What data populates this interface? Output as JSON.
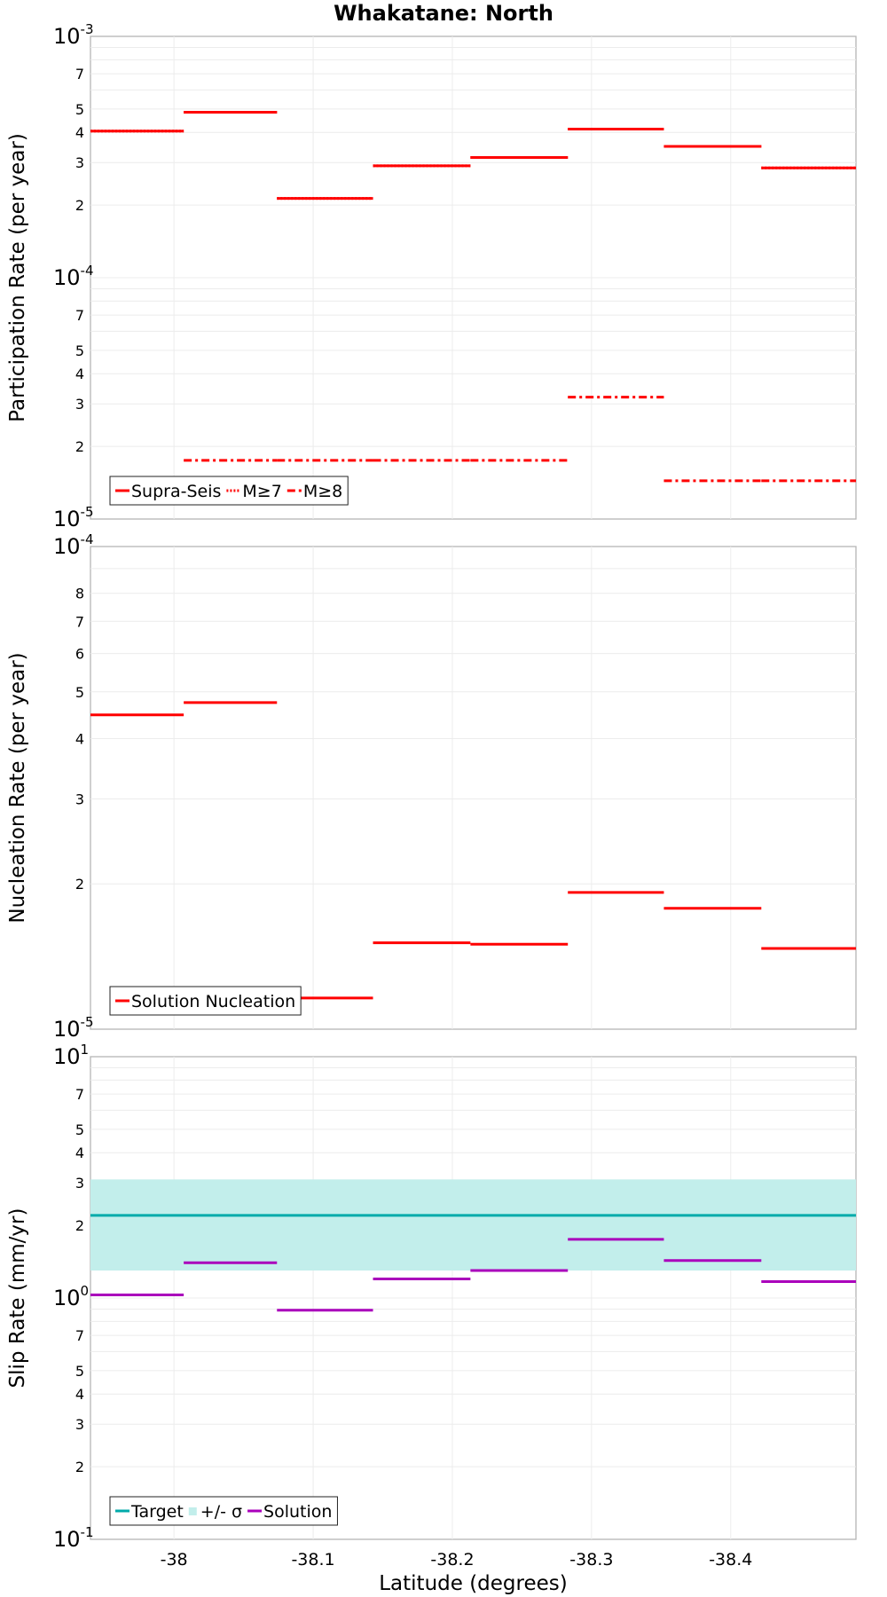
{
  "chart_data": [
    {
      "type": "step",
      "title": "Whakatane: North",
      "ylabel": "Participation Rate (per year)",
      "yscale": "log",
      "ylim": [
        1e-05,
        0.001
      ],
      "xlim": [
        -37.94,
        -38.49
      ],
      "major_tick_labels": [
        {
          "base": "10",
          "exp": "-3",
          "value": 0.001
        },
        {
          "base": "10",
          "exp": "-4",
          "value": 0.0001
        },
        {
          "base": "10",
          "exp": "-5",
          "value": 1e-05
        }
      ],
      "minor_tick_labels": [
        {
          "label": "7",
          "value": 0.0007
        },
        {
          "label": "5",
          "value": 0.0005
        },
        {
          "label": "4",
          "value": 0.0004
        },
        {
          "label": "3",
          "value": 0.0003
        },
        {
          "label": "2",
          "value": 0.0002
        },
        {
          "label": "7",
          "value": 7e-05
        },
        {
          "label": "5",
          "value": 5e-05
        },
        {
          "label": "4",
          "value": 4e-05
        },
        {
          "label": "3",
          "value": 3e-05
        },
        {
          "label": "2",
          "value": 2e-05
        }
      ],
      "legend": {
        "position": "bottom-left",
        "entries": [
          "Supra-Seis",
          "M≥7",
          "M≥8"
        ]
      },
      "series": [
        {
          "name": "Supra-Seis",
          "style": "solid",
          "color": "#ff0000",
          "segments": [
            {
              "x": [
                -37.94,
                -38.007
              ],
              "y": 0.000405
            },
            {
              "x": [
                -38.007,
                -38.074
              ],
              "y": 0.000485
            },
            {
              "x": [
                -38.074,
                -38.143
              ],
              "y": 0.000213
            },
            {
              "x": [
                -38.143,
                -38.213
              ],
              "y": 0.000291
            },
            {
              "x": [
                -38.213,
                -38.283
              ],
              "y": 0.000315
            },
            {
              "x": [
                -38.283,
                -38.352
              ],
              "y": 0.000413
            },
            {
              "x": [
                -38.352,
                -38.422
              ],
              "y": 0.00035
            },
            {
              "x": [
                -38.422,
                -38.49
              ],
              "y": 0.000285
            }
          ]
        },
        {
          "name": "M≥7",
          "style": "dotted",
          "color": "#ff0000",
          "segments": [
            {
              "x": [
                -37.94,
                -38.007
              ],
              "y": 0.000405
            },
            {
              "x": [
                -38.007,
                -38.074
              ],
              "y": 0.000485
            },
            {
              "x": [
                -38.074,
                -38.143
              ],
              "y": 0.000213
            },
            {
              "x": [
                -38.143,
                -38.213
              ],
              "y": 0.000291
            },
            {
              "x": [
                -38.213,
                -38.283
              ],
              "y": 0.000315
            },
            {
              "x": [
                -38.283,
                -38.352
              ],
              "y": 0.000413
            },
            {
              "x": [
                -38.352,
                -38.422
              ],
              "y": 0.00035
            },
            {
              "x": [
                -38.422,
                -38.49
              ],
              "y": 0.000285
            }
          ]
        },
        {
          "name": "M≥8",
          "style": "dashdot",
          "color": "#ff0000",
          "segments": [
            {
              "x": [
                -38.007,
                -38.074
              ],
              "y": 1.75e-05
            },
            {
              "x": [
                -38.074,
                -38.143
              ],
              "y": 1.75e-05
            },
            {
              "x": [
                -38.143,
                -38.213
              ],
              "y": 1.75e-05
            },
            {
              "x": [
                -38.213,
                -38.283
              ],
              "y": 1.75e-05
            },
            {
              "x": [
                -38.283,
                -38.352
              ],
              "y": 3.2e-05
            },
            {
              "x": [
                -38.352,
                -38.422
              ],
              "y": 1.44e-05
            },
            {
              "x": [
                -38.422,
                -38.49
              ],
              "y": 1.44e-05
            }
          ]
        }
      ]
    },
    {
      "type": "step",
      "ylabel": "Nucleation Rate (per year)",
      "yscale": "log",
      "ylim": [
        1e-05,
        0.0001
      ],
      "xlim": [
        -37.94,
        -38.49
      ],
      "major_tick_labels": [
        {
          "base": "10",
          "exp": "-4",
          "value": 0.0001
        },
        {
          "base": "10",
          "exp": "-5",
          "value": 1e-05
        }
      ],
      "minor_tick_labels": [
        {
          "label": "8",
          "value": 8e-05
        },
        {
          "label": "7",
          "value": 7e-05
        },
        {
          "label": "6",
          "value": 6e-05
        },
        {
          "label": "5",
          "value": 5e-05
        },
        {
          "label": "4",
          "value": 4e-05
        },
        {
          "label": "3",
          "value": 3e-05
        },
        {
          "label": "2",
          "value": 2e-05
        }
      ],
      "legend": {
        "position": "bottom-left",
        "entries": [
          "Solution Nucleation"
        ]
      },
      "series": [
        {
          "name": "Solution Nucleation",
          "style": "solid",
          "color": "#ff0000",
          "segments": [
            {
              "x": [
                -37.94,
                -38.007
              ],
              "y": 4.48e-05
            },
            {
              "x": [
                -38.007,
                -38.074
              ],
              "y": 4.75e-05
            },
            {
              "x": [
                -38.074,
                -38.143
              ],
              "y": 1.16e-05
            },
            {
              "x": [
                -38.143,
                -38.213
              ],
              "y": 1.51e-05
            },
            {
              "x": [
                -38.213,
                -38.283
              ],
              "y": 1.5e-05
            },
            {
              "x": [
                -38.283,
                -38.352
              ],
              "y": 1.92e-05
            },
            {
              "x": [
                -38.352,
                -38.422
              ],
              "y": 1.78e-05
            },
            {
              "x": [
                -38.422,
                -38.49
              ],
              "y": 1.47e-05
            }
          ]
        }
      ]
    },
    {
      "type": "step",
      "ylabel": "Slip Rate (mm/yr)",
      "xlabel": "Latitude (degrees)",
      "yscale": "log",
      "ylim": [
        0.1,
        10
      ],
      "xlim": [
        -37.94,
        -38.49
      ],
      "xticks": [
        {
          "label": "-38",
          "value": -38.0
        },
        {
          "label": "-38.1",
          "value": -38.1
        },
        {
          "label": "-38.2",
          "value": -38.2
        },
        {
          "label": "-38.3",
          "value": -38.3
        },
        {
          "label": "-38.4",
          "value": -38.4
        }
      ],
      "major_tick_labels": [
        {
          "base": "10",
          "exp": "1",
          "value": 10
        },
        {
          "base": "10",
          "exp": "0",
          "value": 1
        },
        {
          "base": "10",
          "exp": "-1",
          "value": 0.1
        }
      ],
      "minor_tick_labels": [
        {
          "label": "7",
          "value": 7
        },
        {
          "label": "5",
          "value": 5
        },
        {
          "label": "4",
          "value": 4
        },
        {
          "label": "3",
          "value": 3
        },
        {
          "label": "2",
          "value": 2
        },
        {
          "label": "7",
          "value": 0.7
        },
        {
          "label": "5",
          "value": 0.5
        },
        {
          "label": "4",
          "value": 0.4
        },
        {
          "label": "3",
          "value": 0.3
        },
        {
          "label": "2",
          "value": 0.2
        }
      ],
      "legend": {
        "position": "bottom-left",
        "entries": [
          "Target",
          "+/- σ",
          "Solution"
        ]
      },
      "band": {
        "name": "+/- σ",
        "color": "#c2eeeb",
        "y": [
          1.3,
          3.1
        ],
        "x": [
          -37.94,
          -38.49
        ]
      },
      "series": [
        {
          "name": "Target",
          "style": "solid",
          "color": "#00aaaa",
          "segments": [
            {
              "x": [
                -37.94,
                -38.49
              ],
              "y": 2.2
            }
          ]
        },
        {
          "name": "Solution",
          "style": "solid",
          "color": "#aa00bb",
          "segments": [
            {
              "x": [
                -37.94,
                -38.007
              ],
              "y": 1.03
            },
            {
              "x": [
                -38.007,
                -38.074
              ],
              "y": 1.4
            },
            {
              "x": [
                -38.074,
                -38.143
              ],
              "y": 0.89
            },
            {
              "x": [
                -38.143,
                -38.213
              ],
              "y": 1.2
            },
            {
              "x": [
                -38.213,
                -38.283
              ],
              "y": 1.3
            },
            {
              "x": [
                -38.283,
                -38.352
              ],
              "y": 1.75
            },
            {
              "x": [
                -38.352,
                -38.422
              ],
              "y": 1.43
            },
            {
              "x": [
                -38.422,
                -38.49
              ],
              "y": 1.17
            }
          ]
        }
      ]
    }
  ]
}
